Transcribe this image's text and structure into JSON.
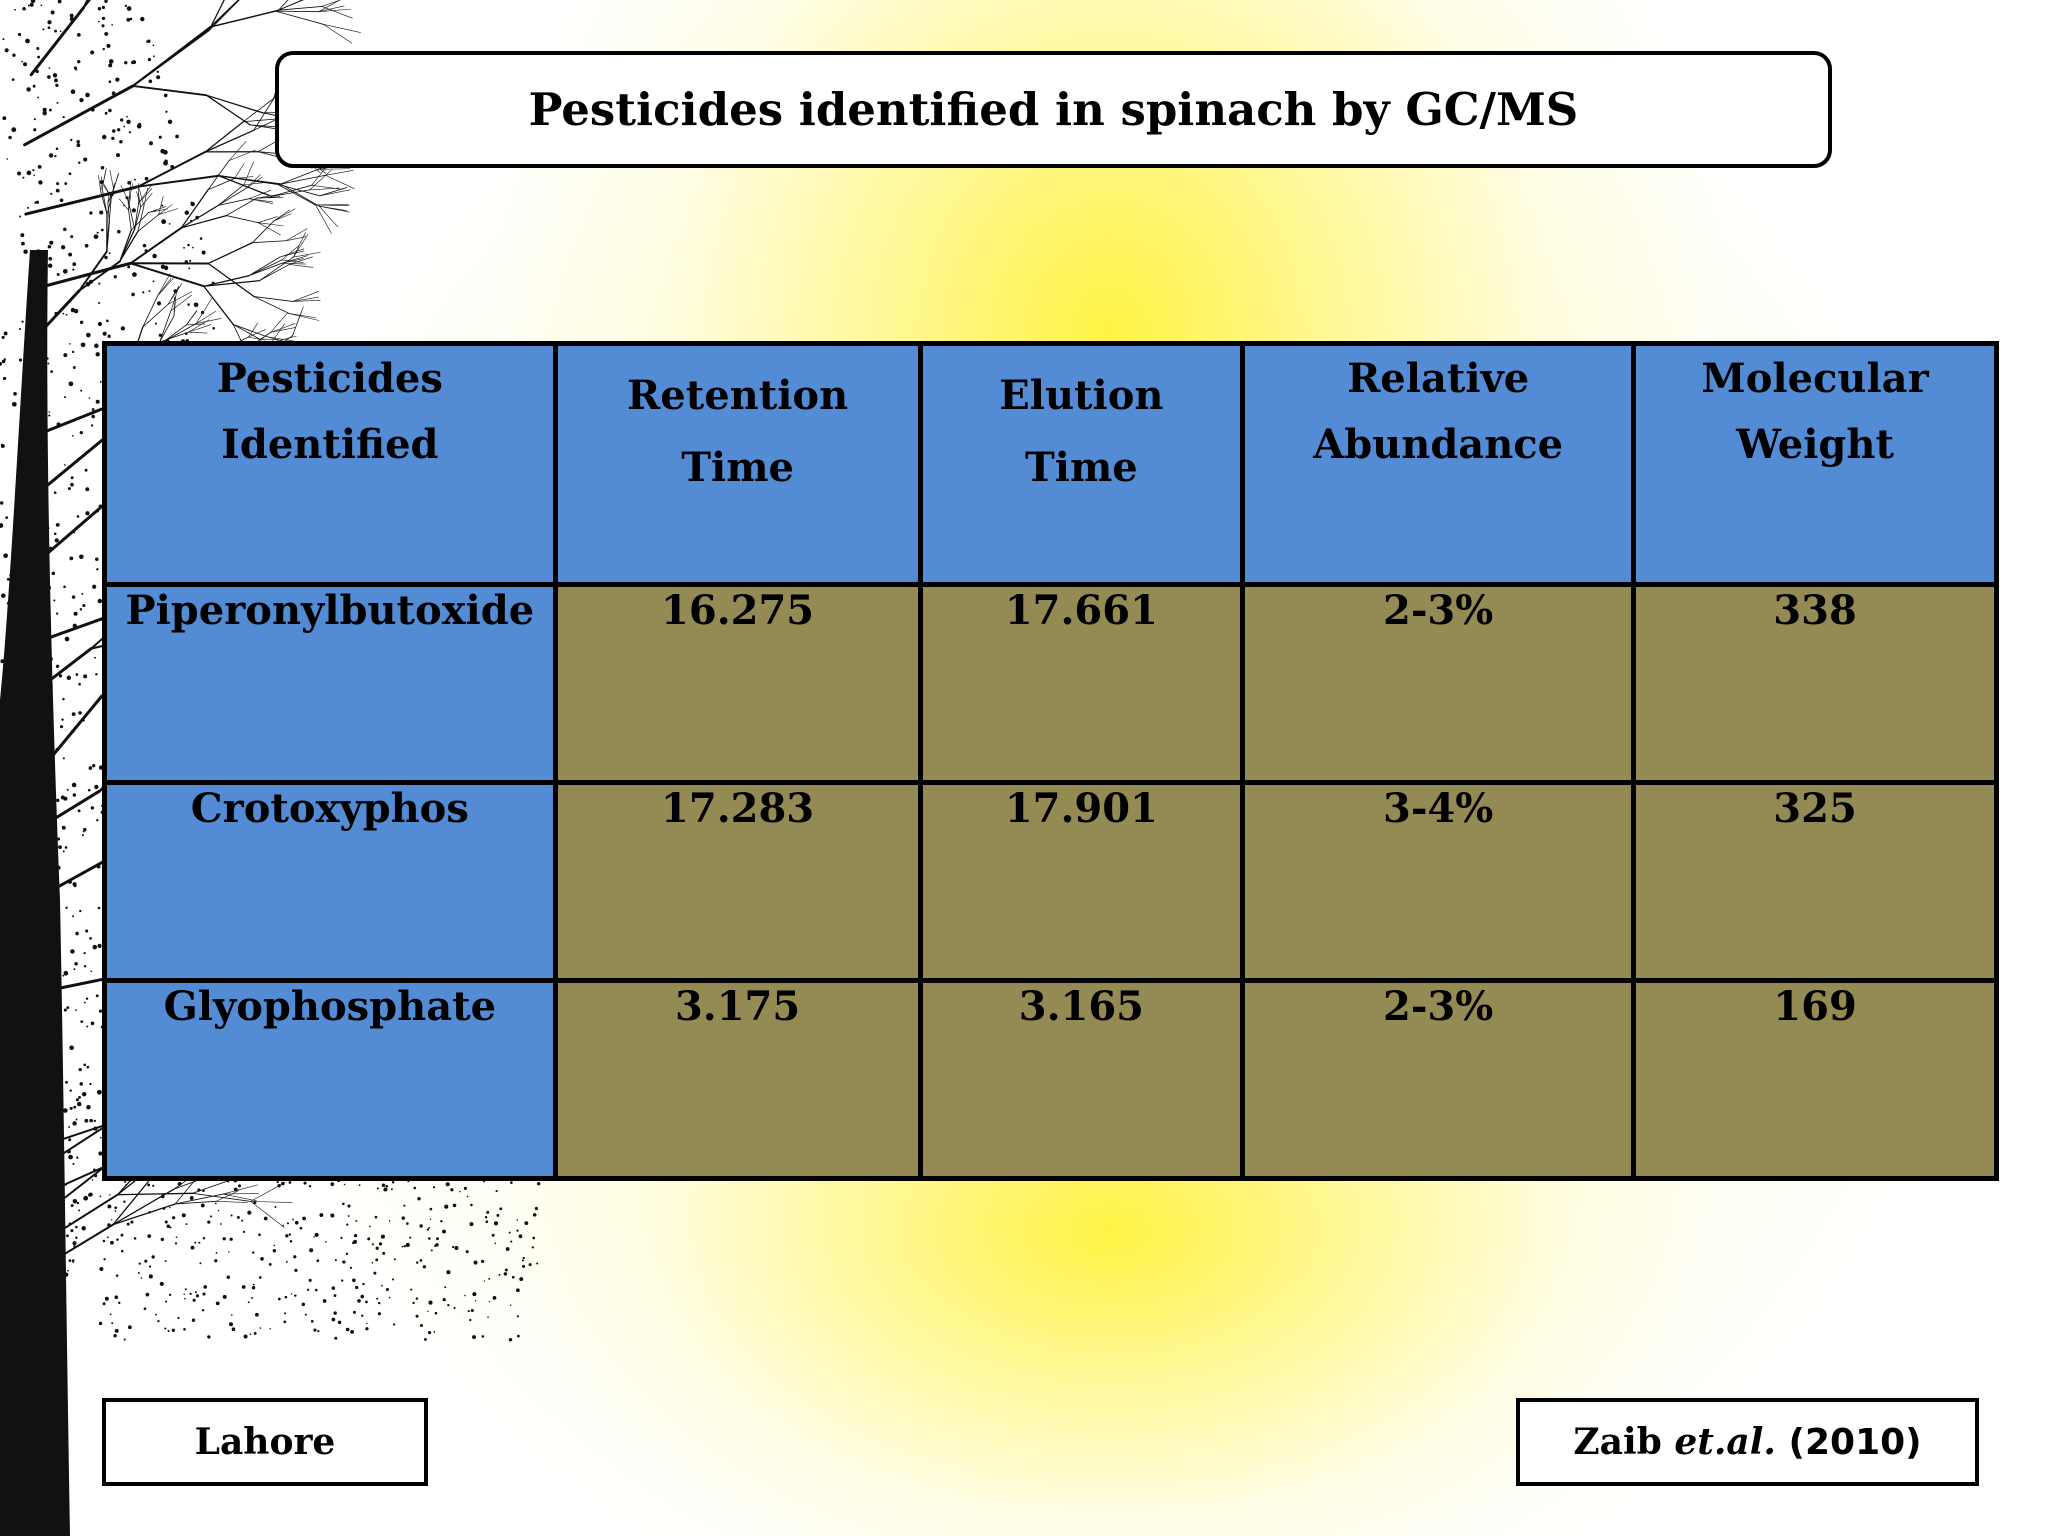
{
  "title": "Pesticides identified in spinach by GC/MS",
  "table": {
    "headers": [
      {
        "line1": "Pesticides",
        "line2": "Identified"
      },
      {
        "line1": "Retention",
        "line2": "Time"
      },
      {
        "line1": "Elution",
        "line2": "Time"
      },
      {
        "line1": "Relative",
        "line2": "Abundance"
      },
      {
        "line1": "Molecular",
        "line2": "Weight"
      }
    ],
    "rows": [
      {
        "pesticide": "Piperonylbutoxide",
        "retention_time": "16.275",
        "elution_time": "17.661",
        "relative_abundance": "2-3%",
        "molecular_weight": "338"
      },
      {
        "pesticide": "Crotoxyphos",
        "retention_time": "17.283",
        "elution_time": "17.901",
        "relative_abundance": "3-4%",
        "molecular_weight": "325"
      },
      {
        "pesticide": "Glyophosphate",
        "retention_time": "3.175",
        "elution_time": "3.165",
        "relative_abundance": "2-3%",
        "molecular_weight": "169"
      }
    ]
  },
  "footer": {
    "location": "Lahore",
    "citation_author": "Zaib",
    "citation_etal": "et.al.",
    "citation_year": "(2010)"
  },
  "colors": {
    "header_bg": "#538cd4",
    "value_bg": "#948a54",
    "accent_glow": "#fff23c"
  }
}
